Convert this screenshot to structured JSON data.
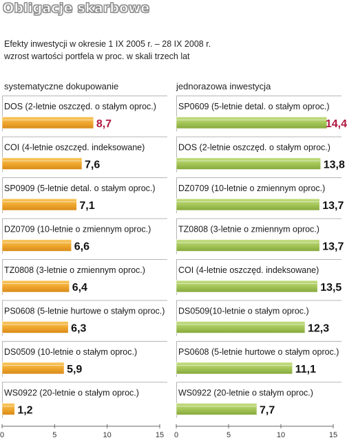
{
  "title": "Obligacje skarbowe",
  "subtitle_line1": "Efekty inwestycji w okresie 1 IX 2005 r. – 28 IX 2008 r.",
  "subtitle_line2": "wzrost wartości portfela w proc. w skali trzech lat",
  "colors": {
    "left_bar": "#f0a830",
    "right_bar": "#a6c75a",
    "highlight_value": "#b0173f"
  },
  "chart_data": [
    {
      "type": "bar",
      "orientation": "horizontal",
      "title": "systematyczne dokupowanie",
      "xlim": [
        0,
        15
      ],
      "xticks": [
        0,
        5,
        10,
        15
      ],
      "highlight_index": 0,
      "categories": [
        "DOS (2-letnie oszczęd. o stałym oproc.)",
        "COI (4-letnie oszczęd. indeksowane)",
        "SP0909 (5-letnie detal. o stałym oproc.)",
        "DZ0709 (10-letnie o zmiennym oproc.)",
        "TZ0808 (3-letnie o zmiennym oproc.)",
        "PS0608 (5-letnie hurtowe o stałym oproc.)",
        "DS0509 (10-letnie o stałym oproc.)",
        "WS0922 (20-letnie o stałym oproc.)"
      ],
      "values": [
        8.7,
        7.6,
        7.1,
        6.6,
        6.4,
        6.3,
        5.9,
        1.2
      ],
      "value_labels": [
        "8,7",
        "7,6",
        "7,1",
        "6,6",
        "6,4",
        "6,3",
        "5,9",
        "1,2"
      ]
    },
    {
      "type": "bar",
      "orientation": "horizontal",
      "title": "jednorazowa inwestycja",
      "xlim": [
        0,
        15
      ],
      "xticks": [
        0,
        5,
        10,
        15
      ],
      "highlight_index": 0,
      "categories": [
        "SP0609 (5-letnie detal. o stałym oproc.)",
        "DOS (2-letnie oszczęd. o stałym oproc.)",
        "DZ0709 (10-letnie o zmiennym oproc.)",
        "TZ0808 (3-letnie o zmiennym oproc.)",
        "COI (4-letnie oszczęd. indeksowane)",
        "DS0509(10-letnie o stałym oproc.)",
        "PS0608 (5-letnie hurtowe o stałym oproc.)",
        "WS0922 (20-letnie o stałym oproc.)"
      ],
      "values": [
        14.4,
        13.8,
        13.7,
        13.7,
        13.5,
        12.3,
        11.1,
        7.7
      ],
      "value_labels": [
        "14,4",
        "13,8",
        "13,7",
        "13,7",
        "13,5",
        "12,3",
        "11,1",
        "7,7"
      ]
    }
  ]
}
